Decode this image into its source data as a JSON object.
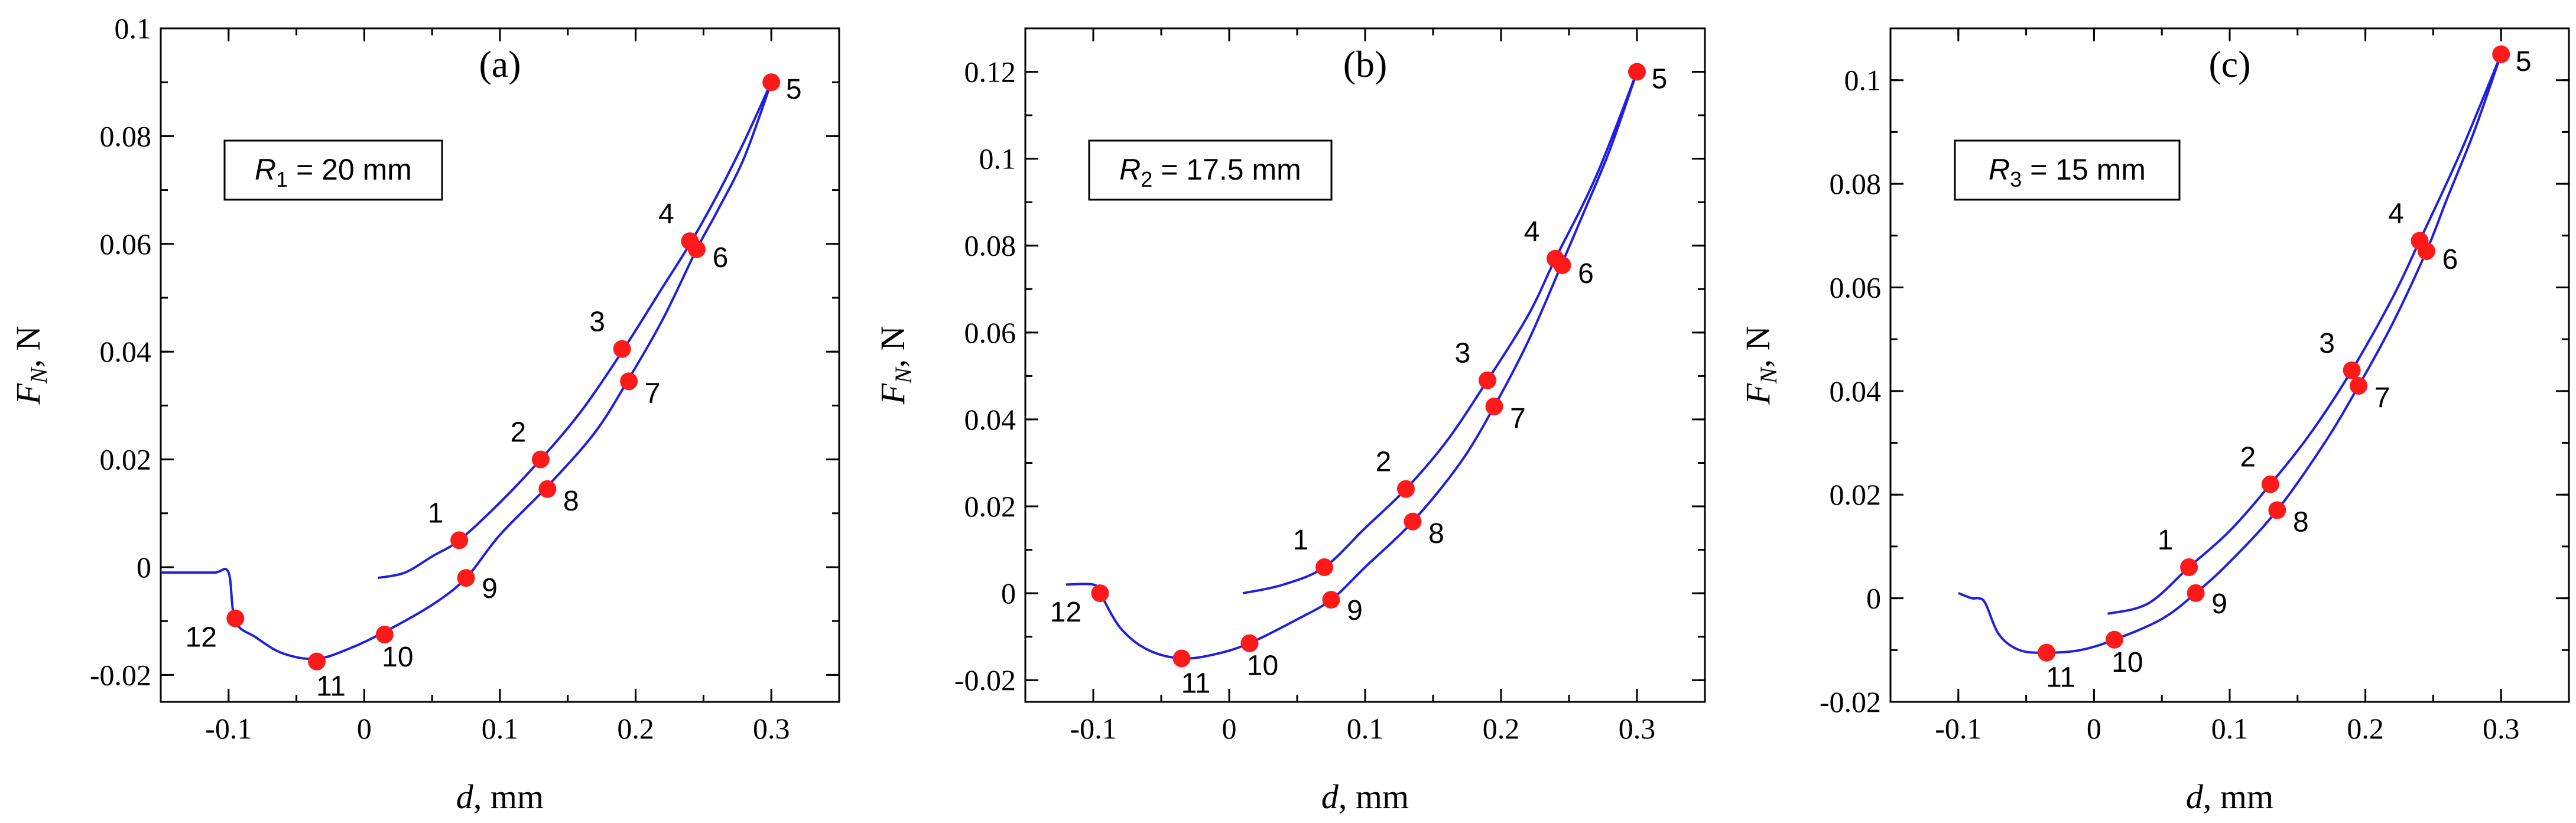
{
  "colors": {
    "curve": "#1f1fe0",
    "marker": "#ff1a1a"
  },
  "chart_data": [
    {
      "type": "line",
      "panel_label": "(a)",
      "xlabel": "d, mm",
      "ylabel": "F_N, N",
      "xlim": [
        -0.15,
        0.35
      ],
      "ylim": [
        -0.025,
        0.1
      ],
      "xticks": [
        -0.1,
        0,
        0.1,
        0.2,
        0.3
      ],
      "xtick_labels": [
        "-0.1",
        "0",
        "0.1",
        "0.2",
        "0.3"
      ],
      "yticks": [
        -0.02,
        0,
        0.02,
        0.04,
        0.06,
        0.08,
        0.1
      ],
      "ytick_labels": [
        "-0.02",
        "0",
        "0.02",
        "0.04",
        "0.06",
        "0.08",
        "0.1"
      ],
      "legend_text": {
        "var": "R",
        "sub": "1",
        "rest": " = 20 mm"
      },
      "loading": {
        "x": [
          0.01,
          0.03,
          0.05,
          0.07,
          0.1,
          0.13,
          0.16,
          0.19,
          0.22,
          0.24,
          0.26,
          0.28,
          0.3
        ],
        "y": [
          -0.002,
          -0.001,
          0.002,
          0.005,
          0.012,
          0.02,
          0.029,
          0.04,
          0.052,
          0.06,
          0.069,
          0.079,
          0.09
        ]
      },
      "unloading": {
        "x": [
          0.3,
          0.28,
          0.26,
          0.245,
          0.22,
          0.195,
          0.17,
          0.135,
          0.1,
          0.075,
          0.05,
          0.015,
          -0.01,
          -0.035,
          -0.06,
          -0.08,
          -0.095,
          -0.1,
          -0.11,
          -0.13,
          -0.15
        ],
        "y": [
          0.09,
          0.076,
          0.066,
          0.059,
          0.046,
          0.035,
          0.025,
          0.015,
          0.006,
          -0.002,
          -0.007,
          -0.012,
          -0.015,
          -0.017,
          -0.016,
          -0.013,
          -0.01,
          -0.001,
          -0.001,
          -0.001,
          -0.001
        ]
      },
      "points": [
        {
          "x": 0.07,
          "y": 0.005,
          "label": "1"
        },
        {
          "x": 0.13,
          "y": 0.02,
          "label": "2"
        },
        {
          "x": 0.19,
          "y": 0.0405,
          "label": "3"
        },
        {
          "x": 0.24,
          "y": 0.0605,
          "label": "4"
        },
        {
          "x": 0.3,
          "y": 0.09,
          "label": "5"
        },
        {
          "x": 0.245,
          "y": 0.059,
          "label": "6"
        },
        {
          "x": 0.195,
          "y": 0.0345,
          "label": "7"
        },
        {
          "x": 0.135,
          "y": 0.0145,
          "label": "8"
        },
        {
          "x": 0.075,
          "y": -0.002,
          "label": "9"
        },
        {
          "x": 0.015,
          "y": -0.0125,
          "label": "10"
        },
        {
          "x": -0.035,
          "y": -0.0175,
          "label": "11"
        },
        {
          "x": -0.095,
          "y": -0.0095,
          "label": "12"
        }
      ]
    },
    {
      "type": "line",
      "panel_label": "(b)",
      "xlabel": "d, mm",
      "ylabel": "F_N, N",
      "xlim": [
        -0.15,
        0.35
      ],
      "ylim": [
        -0.025,
        0.13
      ],
      "xticks": [
        -0.1,
        0,
        0.1,
        0.2,
        0.3
      ],
      "xtick_labels": [
        "-0.1",
        "0",
        "0.1",
        "0.2",
        "0.3"
      ],
      "yticks": [
        -0.02,
        0,
        0.02,
        0.04,
        0.06,
        0.08,
        0.1,
        0.12
      ],
      "ytick_labels": [
        "-0.02",
        "0",
        "0.02",
        "0.04",
        "0.06",
        "0.08",
        "0.1",
        "0.12"
      ],
      "legend_text": {
        "var": "R",
        "sub": "2",
        "rest": " = 17.5 mm"
      },
      "loading": {
        "x": [
          0.01,
          0.04,
          0.07,
          0.1,
          0.13,
          0.16,
          0.19,
          0.22,
          0.24,
          0.27,
          0.3
        ],
        "y": [
          0.0,
          0.002,
          0.006,
          0.015,
          0.024,
          0.035,
          0.049,
          0.064,
          0.077,
          0.096,
          0.12
        ]
      },
      "unloading": {
        "x": [
          0.3,
          0.28,
          0.26,
          0.245,
          0.22,
          0.195,
          0.17,
          0.135,
          0.1,
          0.075,
          0.05,
          0.015,
          -0.01,
          -0.035,
          -0.06,
          -0.08,
          -0.095,
          -0.1,
          -0.12
        ],
        "y": [
          0.12,
          0.102,
          0.087,
          0.076,
          0.058,
          0.043,
          0.03,
          0.0165,
          0.006,
          -0.0015,
          -0.006,
          -0.0115,
          -0.014,
          -0.015,
          -0.013,
          -0.008,
          0.0,
          0.002,
          0.002
        ]
      },
      "points": [
        {
          "x": 0.07,
          "y": 0.006,
          "label": "1"
        },
        {
          "x": 0.13,
          "y": 0.024,
          "label": "2"
        },
        {
          "x": 0.19,
          "y": 0.049,
          "label": "3"
        },
        {
          "x": 0.24,
          "y": 0.077,
          "label": "4"
        },
        {
          "x": 0.3,
          "y": 0.12,
          "label": "5"
        },
        {
          "x": 0.245,
          "y": 0.0755,
          "label": "6"
        },
        {
          "x": 0.195,
          "y": 0.043,
          "label": "7"
        },
        {
          "x": 0.135,
          "y": 0.0165,
          "label": "8"
        },
        {
          "x": 0.075,
          "y": -0.0015,
          "label": "9"
        },
        {
          "x": 0.015,
          "y": -0.0115,
          "label": "10"
        },
        {
          "x": -0.035,
          "y": -0.015,
          "label": "11"
        },
        {
          "x": -0.095,
          "y": 0.0,
          "label": "12"
        }
      ]
    },
    {
      "type": "line",
      "panel_label": "(c)",
      "xlabel": "d, mm",
      "ylabel": "F_N, N",
      "xlim": [
        -0.15,
        0.35
      ],
      "ylim": [
        -0.02,
        0.11
      ],
      "xticks": [
        -0.1,
        0,
        0.1,
        0.2,
        0.3
      ],
      "xtick_labels": [
        "-0.1",
        "0",
        "0.1",
        "0.2",
        "0.3"
      ],
      "yticks": [
        -0.02,
        0,
        0.02,
        0.04,
        0.06,
        0.08,
        0.1
      ],
      "ytick_labels": [
        "-0.02",
        "0",
        "0.02",
        "0.04",
        "0.06",
        "0.08",
        "0.1"
      ],
      "legend_text": {
        "var": "R",
        "sub": "3",
        "rest": " = 15 mm"
      },
      "loading": {
        "x": [
          0.01,
          0.04,
          0.07,
          0.1,
          0.13,
          0.16,
          0.19,
          0.22,
          0.24,
          0.27,
          0.3
        ],
        "y": [
          -0.003,
          -0.001,
          0.006,
          0.013,
          0.022,
          0.032,
          0.044,
          0.058,
          0.069,
          0.086,
          0.105
        ]
      },
      "unloading": {
        "x": [
          0.3,
          0.28,
          0.26,
          0.245,
          0.22,
          0.195,
          0.17,
          0.135,
          0.1,
          0.075,
          0.05,
          0.015,
          -0.01,
          -0.035,
          -0.055,
          -0.07,
          -0.08,
          -0.085,
          -0.09,
          -0.1
        ],
        "y": [
          0.105,
          0.09,
          0.077,
          0.067,
          0.053,
          0.041,
          0.03,
          0.017,
          0.007,
          0.001,
          -0.004,
          -0.008,
          -0.01,
          -0.0105,
          -0.01,
          -0.007,
          -0.001,
          0.0,
          0.0,
          0.001
        ]
      },
      "points": [
        {
          "x": 0.07,
          "y": 0.006,
          "label": "1"
        },
        {
          "x": 0.13,
          "y": 0.022,
          "label": "2"
        },
        {
          "x": 0.19,
          "y": 0.044,
          "label": "3"
        },
        {
          "x": 0.24,
          "y": 0.069,
          "label": "4"
        },
        {
          "x": 0.3,
          "y": 0.105,
          "label": "5"
        },
        {
          "x": 0.245,
          "y": 0.067,
          "label": "6"
        },
        {
          "x": 0.195,
          "y": 0.041,
          "label": "7"
        },
        {
          "x": 0.135,
          "y": 0.017,
          "label": "8"
        },
        {
          "x": 0.075,
          "y": 0.001,
          "label": "9"
        },
        {
          "x": 0.015,
          "y": -0.008,
          "label": "10"
        },
        {
          "x": -0.035,
          "y": -0.0105,
          "label": "11"
        }
      ]
    }
  ]
}
